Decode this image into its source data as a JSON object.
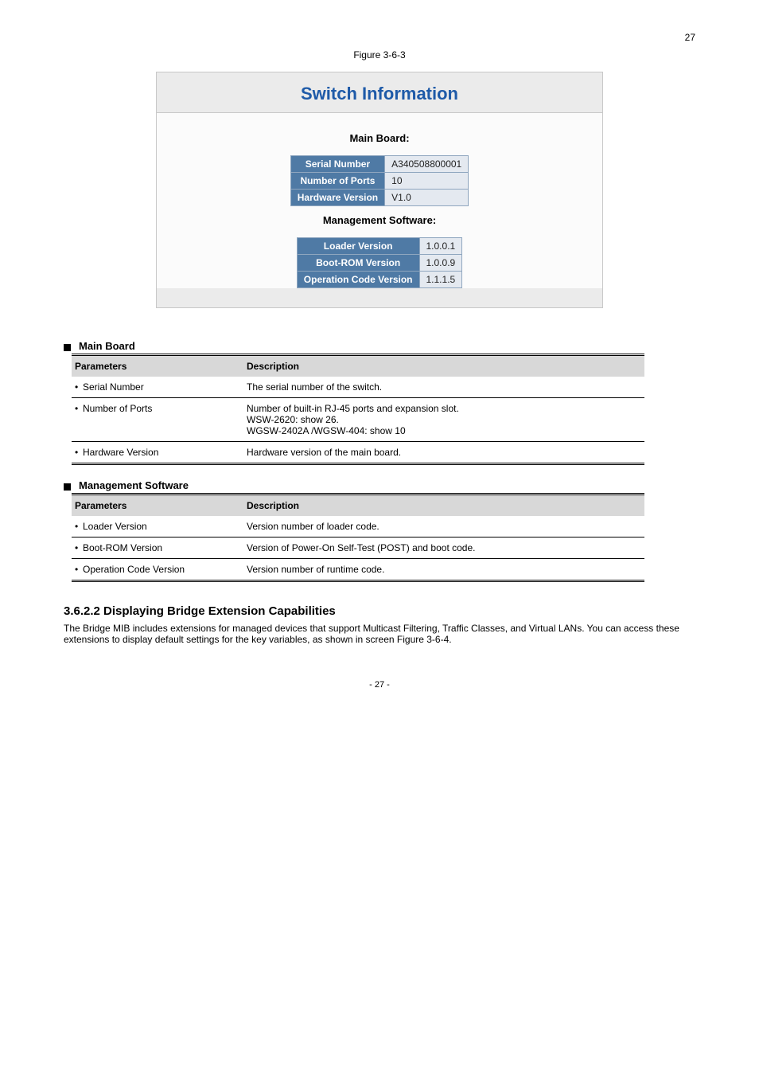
{
  "page_top_num": "27",
  "figure_caption": "Figure 3-6-3",
  "panel": {
    "title": "Switch Information",
    "main_board_label": "Main Board:",
    "main_board_rows": [
      {
        "k": "Serial Number",
        "v": "A340508800001"
      },
      {
        "k": "Number of Ports",
        "v": "10"
      },
      {
        "k": "Hardware Version",
        "v": "V1.0"
      }
    ],
    "mgmt_label": "Management Software:",
    "mgmt_rows": [
      {
        "k": "Loader Version",
        "v": "1.0.0.1"
      },
      {
        "k": "Boot-ROM Version",
        "v": "1.0.0.9"
      },
      {
        "k": "Operation Code Version",
        "v": "1.1.1.5"
      }
    ]
  },
  "sections": {
    "b_title": "3.6.2.2 Displaying Bridge Extension Capabilities",
    "b_text": "The Bridge MIB includes extensions for managed devices that support Multicast Filtering, Traffic Classes, and Virtual LANs. You can access these extensions to display default settings for the key variables, as shown in screen Figure 3-6-4.",
    "main_board_title": "Main Board",
    "main_board_params": {
      "header": {
        "p": "Parameters",
        "d": "Description"
      },
      "rows": [
        {
          "p": "Serial Number",
          "d": "The serial number of the switch."
        },
        {
          "p": "Number of Ports",
          "d": "Number of built-in RJ-45 ports and expansion slot.\nWSW-2620: show 26.\nWGSW-2402A /WGSW-404: show 10"
        },
        {
          "p": "Hardware Version",
          "d": "Hardware version of the main board."
        }
      ]
    },
    "mgmt_title": "Management Software",
    "mgmt_params": {
      "header": {
        "p": "Parameters",
        "d": "Description"
      },
      "rows": [
        {
          "p": "Loader Version",
          "d": "Version number of loader code."
        },
        {
          "p": "Boot-ROM Version",
          "d": "Version of Power-On Self-Test (POST) and boot code."
        },
        {
          "p": "Operation Code Version",
          "d": "Version number of runtime code."
        }
      ]
    }
  },
  "footer": "- 27 -"
}
